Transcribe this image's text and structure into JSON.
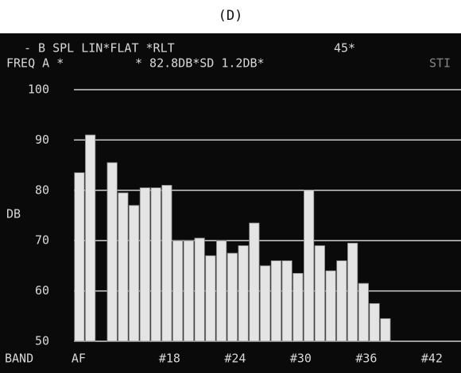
{
  "chart_data": {
    "type": "bar",
    "title": "(D)",
    "annotations": [
      "- B SPL LIN*FLAT *RLT",
      "45*",
      "FREQ A *",
      "* 82.8DB*SD 1.2DB*",
      "STI"
    ],
    "y_label": "DB",
    "x_label": "BAND",
    "categories": [
      "AF",
      null,
      null,
      null,
      null,
      null,
      null,
      null,
      "#18",
      null,
      null,
      null,
      null,
      null,
      "#24",
      null,
      null,
      null,
      null,
      null,
      "#30",
      null,
      null,
      null,
      null,
      null,
      "#36",
      null,
      null,
      null,
      null,
      null,
      "#42"
    ],
    "values": [
      83.5,
      91,
      null,
      85.5,
      79.5,
      77,
      80.5,
      80.5,
      81,
      70,
      70,
      70.5,
      67,
      70,
      67.5,
      69,
      73.5,
      65,
      66,
      66,
      63.5,
      80,
      69,
      64,
      66,
      69.5,
      61.5,
      57.5,
      54.5,
      null,
      null,
      null,
      null
    ],
    "color": "#e4e4e4",
    "ylim": [
      50,
      100
    ],
    "yticks": [
      50,
      60,
      70,
      80,
      90,
      100
    ],
    "grid": true
  }
}
